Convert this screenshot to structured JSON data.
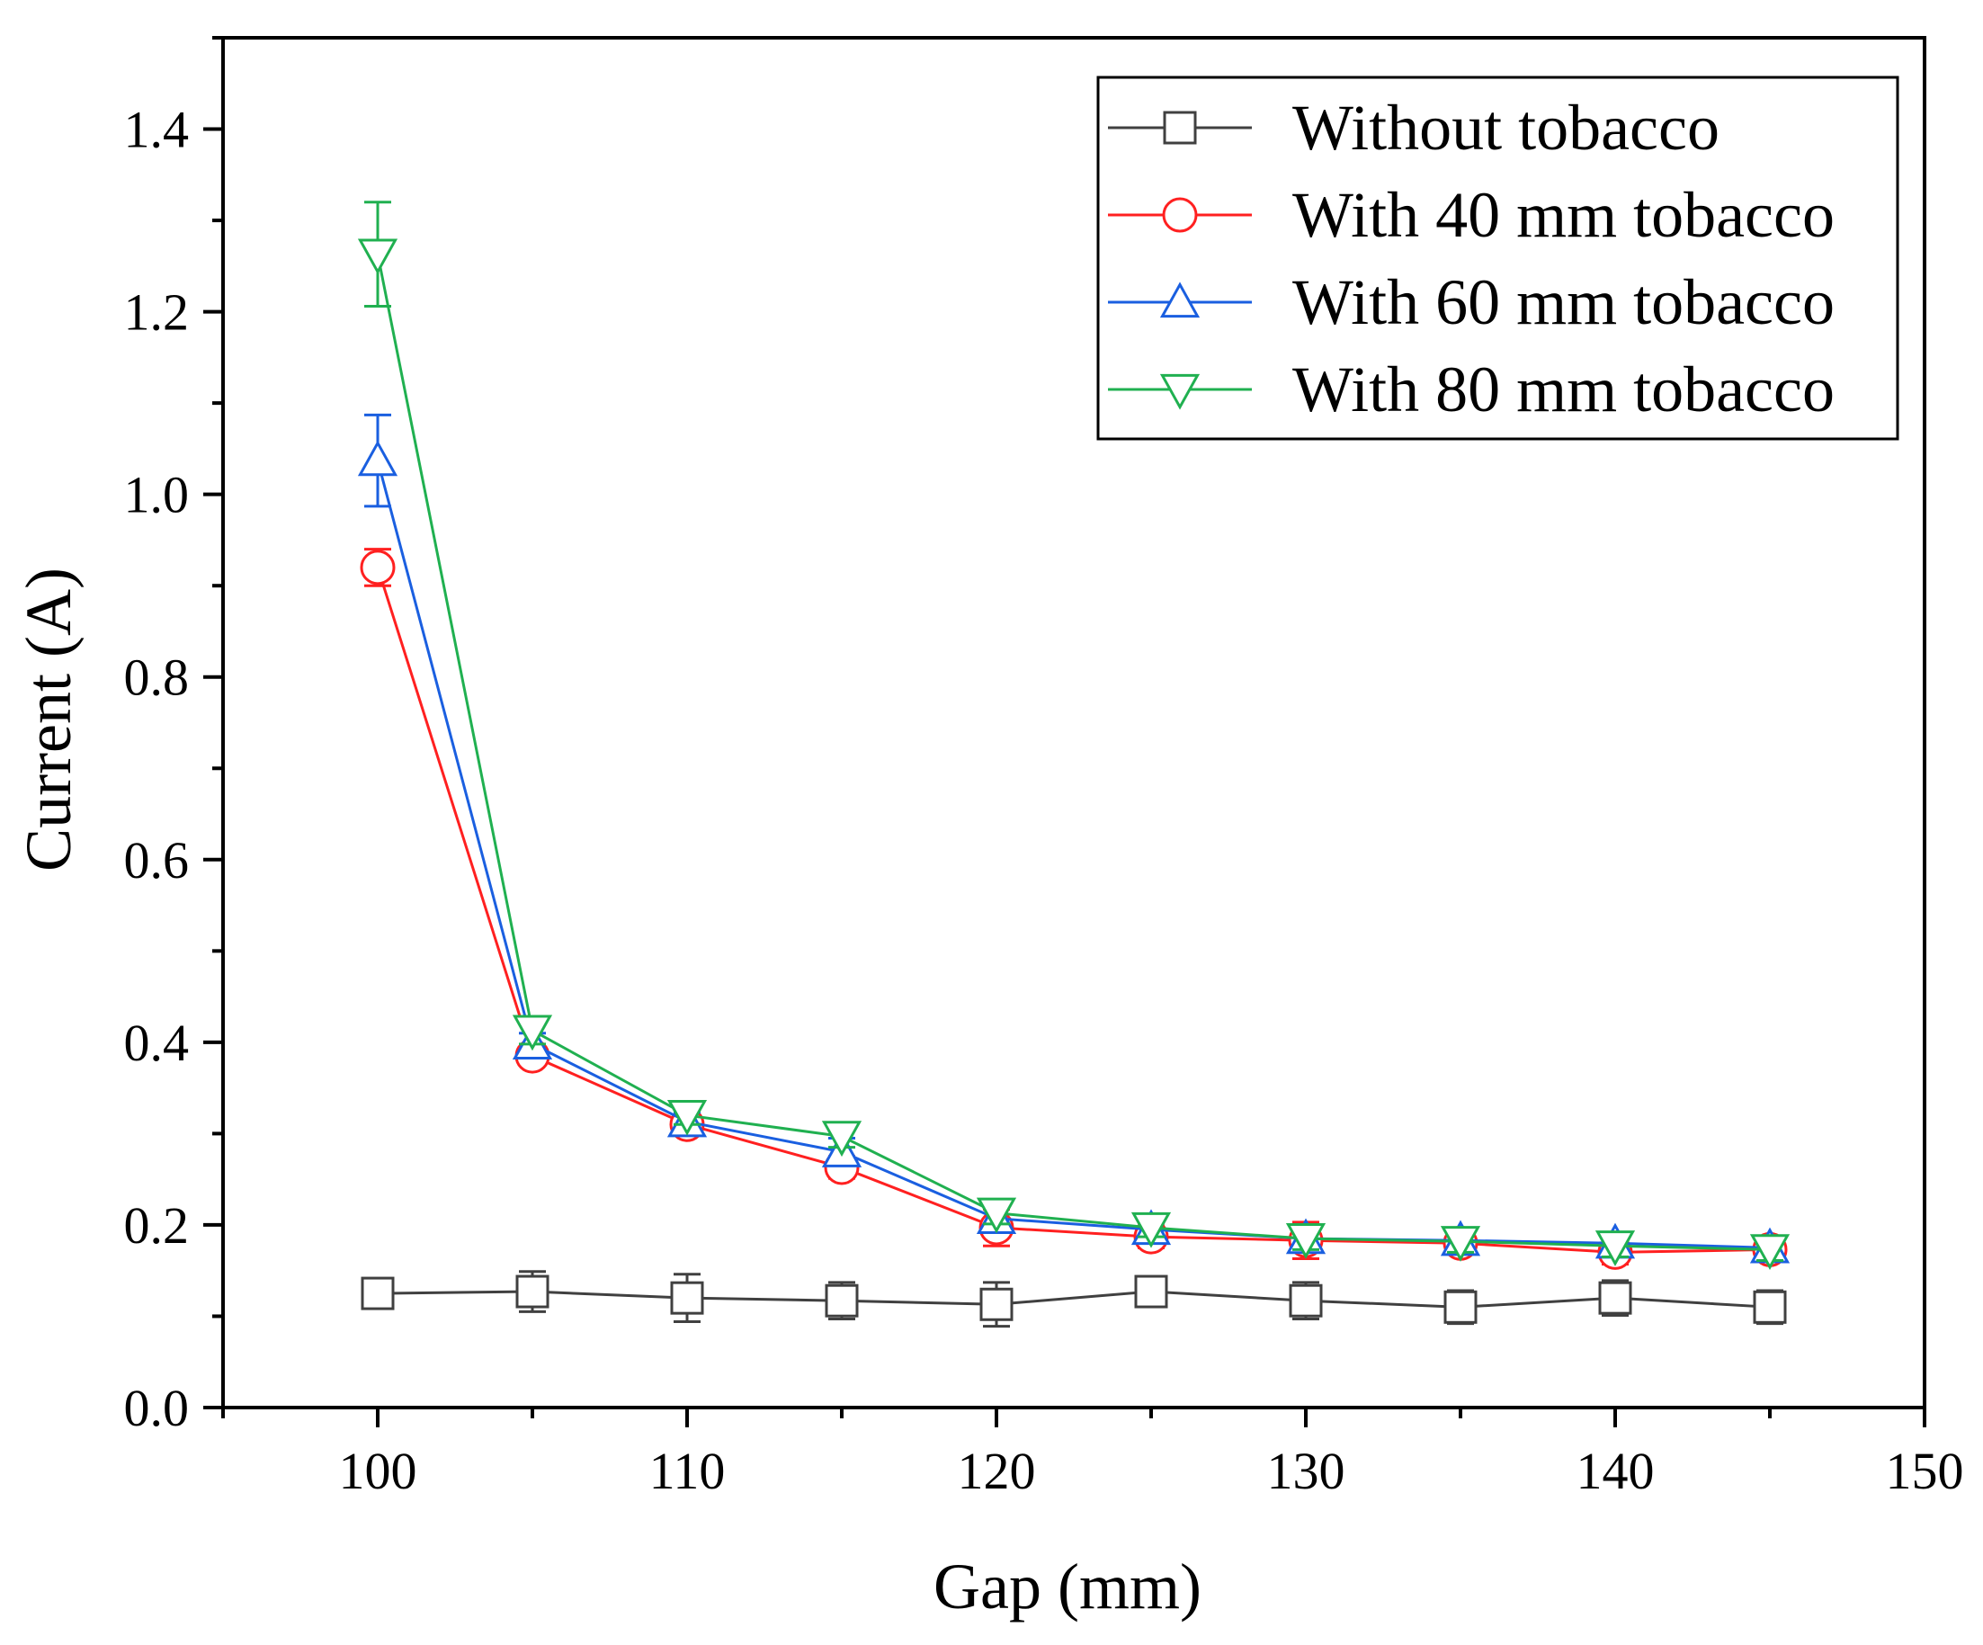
{
  "chart_data": {
    "type": "line",
    "title": "",
    "xlabel": "Gap (mm)",
    "ylabel": "Current (A)",
    "xlim": [
      95,
      150
    ],
    "ylim": [
      0,
      1.5
    ],
    "xticks": [
      100,
      110,
      120,
      130,
      140,
      150
    ],
    "xtick_labels": [
      "100",
      "110",
      "120",
      "130",
      "140",
      "150"
    ],
    "yticks": [
      0.0,
      0.2,
      0.4,
      0.6,
      0.8,
      1.0,
      1.2,
      1.4
    ],
    "ytick_labels": [
      "0.0",
      "0.2",
      "0.4",
      "0.6",
      "0.8",
      "1.0",
      "1.2",
      "1.4"
    ],
    "grid": false,
    "legend_position": "top-right",
    "x": [
      100,
      105,
      110,
      115,
      120,
      125,
      130,
      135,
      140,
      145
    ],
    "series": [
      {
        "name": "Without tobacco",
        "color": "#404040",
        "marker": "square",
        "values": [
          0.125,
          0.127,
          0.12,
          0.117,
          0.113,
          0.127,
          0.117,
          0.11,
          0.12,
          0.11
        ],
        "errors": [
          0.01,
          0.022,
          0.026,
          0.02,
          0.024,
          0.01,
          0.02,
          0.018,
          0.019,
          0.018
        ]
      },
      {
        "name": "With 40 mm tobacco",
        "color": "#ff2020",
        "marker": "circle",
        "values": [
          0.92,
          0.385,
          0.31,
          0.263,
          0.197,
          0.187,
          0.183,
          0.18,
          0.17,
          0.173
        ],
        "errors": [
          0.02,
          0.01,
          0.01,
          0.012,
          0.02,
          0.012,
          0.02,
          0.012,
          0.013,
          0.012
        ]
      },
      {
        "name": "With 60 mm tobacco",
        "color": "#1a5fe0",
        "marker": "triangle-up",
        "values": [
          1.037,
          0.398,
          0.313,
          0.28,
          0.207,
          0.195,
          0.185,
          0.183,
          0.18,
          0.175
        ],
        "errors": [
          0.05,
          0.012,
          0.01,
          0.015,
          0.012,
          0.012,
          0.012,
          0.012,
          0.012,
          0.012
        ]
      },
      {
        "name": "With 80 mm tobacco",
        "color": "#20b050",
        "marker": "triangle-down",
        "values": [
          1.263,
          0.413,
          0.32,
          0.297,
          0.213,
          0.197,
          0.185,
          0.182,
          0.177,
          0.173
        ],
        "errors": [
          0.057,
          0.015,
          0.01,
          0.012,
          0.012,
          0.01,
          0.012,
          0.012,
          0.012,
          0.012
        ]
      }
    ]
  }
}
